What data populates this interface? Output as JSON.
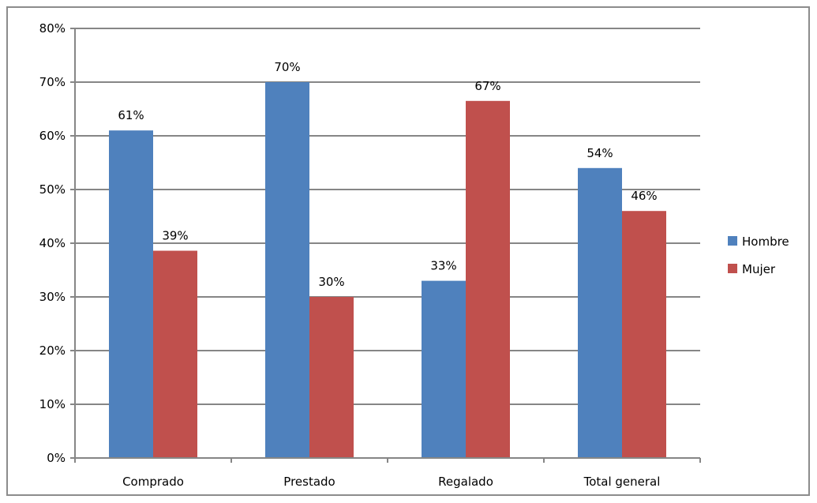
{
  "chart_data": {
    "type": "bar",
    "title": "",
    "xlabel": "",
    "ylabel": "",
    "categories": [
      "Comprado",
      "Prestado",
      "Regalado",
      "Total general"
    ],
    "series": [
      {
        "name": "Hombre",
        "color": "#4f81bd",
        "values": [
          61,
          70,
          33,
          54
        ],
        "labels": [
          "61%",
          "70%",
          "33%",
          "54%"
        ]
      },
      {
        "name": "Mujer",
        "color": "#c0504d",
        "values": [
          38.6,
          30,
          66.5,
          46
        ],
        "labels": [
          "39%",
          "30%",
          "67%",
          "46%"
        ]
      }
    ],
    "ylim": [
      0,
      80
    ],
    "yticks": [
      0,
      10,
      20,
      30,
      40,
      50,
      60,
      70,
      80
    ],
    "ytick_labels": [
      "0%",
      "10%",
      "20%",
      "30%",
      "40%",
      "50%",
      "60%",
      "70%",
      "80%"
    ],
    "grid": true,
    "legend_position": "right"
  }
}
